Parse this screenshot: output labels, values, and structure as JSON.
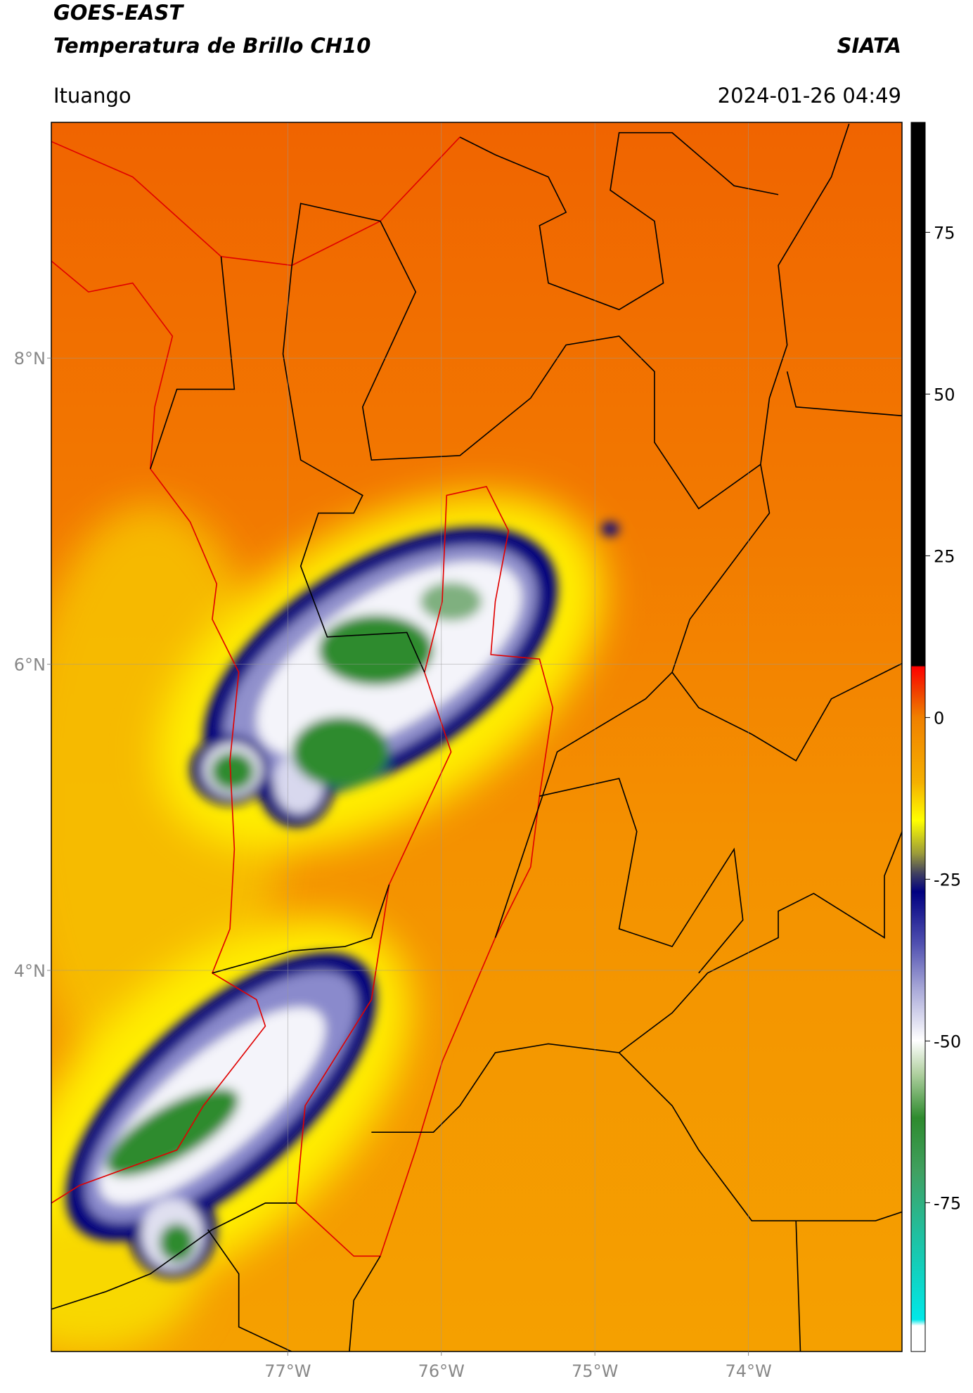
{
  "header": {
    "title": "GOES-EAST",
    "subtitle": "Temperatura de Brillo CH10",
    "source": "SIATA",
    "location": "Ituango",
    "datetime": "2024-01-26 04:49"
  },
  "map": {
    "xlim": [
      -78.54,
      -73.0
    ],
    "ylim": [
      1.51,
      9.54
    ],
    "xticks": [
      {
        "value": -77,
        "label": "77°W"
      },
      {
        "value": -76,
        "label": "76°W"
      },
      {
        "value": -75,
        "label": "75°W"
      },
      {
        "value": -74,
        "label": "74°W"
      }
    ],
    "yticks": [
      {
        "value": 8,
        "label": "8°N"
      },
      {
        "value": 6,
        "label": "6°N"
      },
      {
        "value": 4,
        "label": "4°N"
      }
    ],
    "grid": true
  },
  "colorbar": {
    "lim": [
      -98,
      92
    ],
    "ticks": [
      -75,
      -50,
      -25,
      0,
      25,
      50,
      75
    ]
  }
}
